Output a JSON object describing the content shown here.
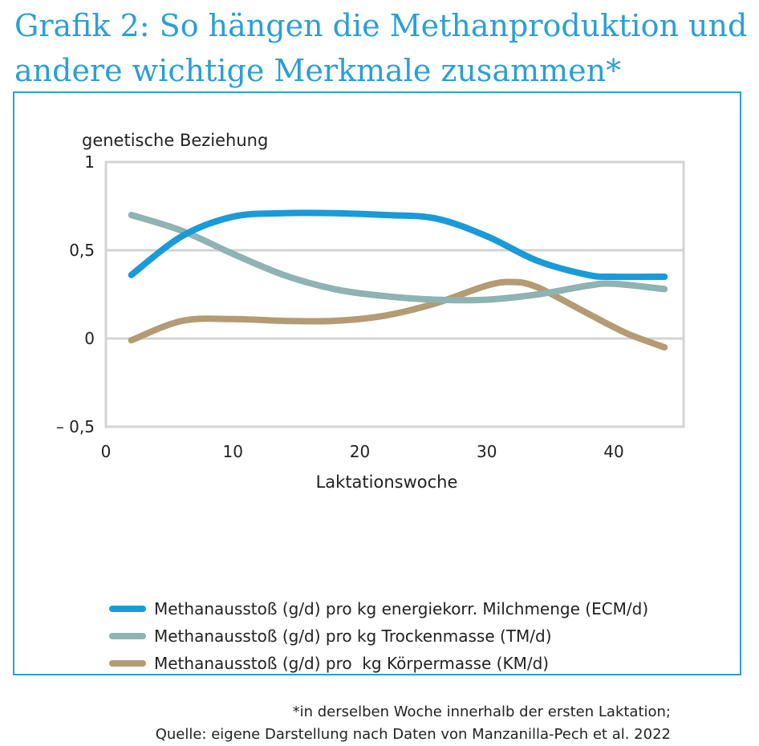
{
  "title": "Grafik 2: So hängen die Methanproduktion und andere wichtige Merkmale zusammen*",
  "chart_data": {
    "type": "line",
    "ylabel": "genetische Beziehung",
    "xlabel": "Laktationswoche",
    "xlim": [
      0,
      45.5
    ],
    "ylim": [
      -0.5,
      1
    ],
    "x_ticks": [
      0,
      10,
      20,
      30,
      40
    ],
    "x_tick_labels": [
      "0",
      "10",
      "20",
      "30",
      "40"
    ],
    "y_ticks": [
      1,
      0.5,
      0,
      -0.5
    ],
    "y_tick_labels": [
      "1",
      "0,5",
      "0",
      "– 0,5"
    ],
    "grid": "horizontal",
    "legend_position": "bottom",
    "series": [
      {
        "name": "Methanausstoß (g/d) pro kg energiekorr. Milchmenge (ECM/d)",
        "color": "#1a9ad9",
        "x": [
          2,
          6,
          10,
          14,
          18,
          22,
          26,
          30,
          34,
          38,
          40,
          44
        ],
        "y": [
          0.36,
          0.58,
          0.69,
          0.71,
          0.71,
          0.7,
          0.68,
          0.58,
          0.44,
          0.36,
          0.35,
          0.35
        ]
      },
      {
        "name": "Methanausstoß (g/d) pro kg Trockenmasse (TM/d)",
        "color": "#8fb2b2",
        "x": [
          2,
          6,
          10,
          14,
          18,
          22,
          26,
          30,
          34,
          38,
          40,
          44
        ],
        "y": [
          0.7,
          0.61,
          0.48,
          0.36,
          0.28,
          0.24,
          0.22,
          0.22,
          0.25,
          0.3,
          0.31,
          0.28
        ]
      },
      {
        "name": "Methanausstoß (g/d) pro  kg Körpermasse (KM/d)",
        "color": "#b39b73",
        "x": [
          2,
          6,
          10,
          14,
          18,
          22,
          26,
          30,
          32,
          34,
          38,
          41,
          44
        ],
        "y": [
          -0.01,
          0.1,
          0.11,
          0.1,
          0.1,
          0.13,
          0.2,
          0.3,
          0.32,
          0.29,
          0.14,
          0.03,
          -0.05
        ]
      }
    ]
  },
  "footnote": {
    "line1": "*in derselben Woche innerhalb der ersten Laktation;",
    "line2": "Quelle: eigene Darstellung nach Daten von Manzanilla-Pech et al. 2022"
  }
}
